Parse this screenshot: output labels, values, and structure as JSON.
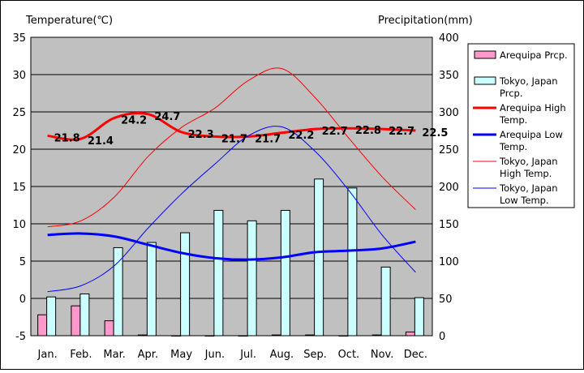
{
  "chart_data": {
    "type": "bar+line",
    "left_axis_title": "Temperature(℃)",
    "right_axis_title": "Precipitation(mm)",
    "categories": [
      "Jan.",
      "Feb.",
      "Mar.",
      "Apr.",
      "May",
      "Jun.",
      "Jul.",
      "Aug.",
      "Sep.",
      "Oct.",
      "Nov.",
      "Dec."
    ],
    "temp_ylim": [
      -5,
      35
    ],
    "temp_ticks": [
      "35",
      "30",
      "25",
      "20",
      "15",
      "10",
      "5",
      "0",
      "-5"
    ],
    "prcp_ylim": [
      0,
      400
    ],
    "prcp_ticks": [
      "400",
      "350",
      "300",
      "250",
      "200",
      "150",
      "100",
      "50",
      "0"
    ],
    "grid": true,
    "legend_position": "right",
    "bar_series": [
      {
        "name": "Arequipa Prcp.",
        "color": "#ff99cc",
        "values": [
          28,
          40,
          20,
          1,
          0,
          0,
          0,
          1,
          1,
          0,
          1,
          5
        ]
      },
      {
        "name": "Tokyo, Japan Prcp.",
        "color": "#ccffff",
        "values": [
          52,
          56,
          118,
          125,
          138,
          168,
          154,
          168,
          210,
          198,
          92,
          51
        ]
      }
    ],
    "line_series": [
      {
        "name": "Arequipa High Temp.",
        "color": "#ff0000",
        "width": "thick",
        "values": [
          21.8,
          21.4,
          24.2,
          24.7,
          22.3,
          21.7,
          21.7,
          22.2,
          22.7,
          22.8,
          22.7,
          22.5
        ],
        "labels": [
          "21.8",
          "21.4",
          "24.2",
          "24.7",
          "22.3",
          "21.7",
          "21.7",
          "22.2",
          "22.7",
          "22.8",
          "22.7",
          "22.5"
        ]
      },
      {
        "name": "Arequipa Low Temp.",
        "color": "#0000ff",
        "width": "thick",
        "values": [
          8.5,
          8.7,
          8.3,
          7.2,
          6.1,
          5.4,
          5.2,
          5.5,
          6.2,
          6.4,
          6.7,
          7.6
        ]
      },
      {
        "name": "Tokyo, Japan High Temp.",
        "color": "#ff0000",
        "width": "thin",
        "values": [
          9.6,
          10.4,
          13.6,
          19.0,
          22.9,
          25.5,
          29.2,
          30.8,
          26.9,
          21.5,
          16.3,
          11.9
        ]
      },
      {
        "name": "Tokyo, Japan Low Temp.",
        "color": "#0000ff",
        "width": "thin",
        "values": [
          0.9,
          1.7,
          4.4,
          9.4,
          14.0,
          18.0,
          21.8,
          23.0,
          19.7,
          14.5,
          8.5,
          3.5
        ]
      }
    ],
    "legend": [
      {
        "kind": "bar",
        "color": "#ff99cc",
        "lines": [
          "Arequipa Prcp."
        ]
      },
      {
        "kind": "bar",
        "color": "#ccffff",
        "lines": [
          "Tokyo, Japan",
          "Prcp."
        ]
      },
      {
        "kind": "line",
        "color": "#ff0000",
        "weight": "thick",
        "lines": [
          "Arequipa High",
          "Temp."
        ]
      },
      {
        "kind": "line",
        "color": "#0000ff",
        "weight": "thick",
        "lines": [
          "Arequipa Low",
          "Temp."
        ]
      },
      {
        "kind": "line",
        "color": "#ff0000",
        "weight": "thin",
        "lines": [
          "Tokyo, Japan",
          "High Temp."
        ]
      },
      {
        "kind": "line",
        "color": "#0000ff",
        "weight": "thin",
        "lines": [
          "Tokyo, Japan",
          "Low Temp."
        ]
      }
    ],
    "plot_background": "#c0c0c0"
  }
}
